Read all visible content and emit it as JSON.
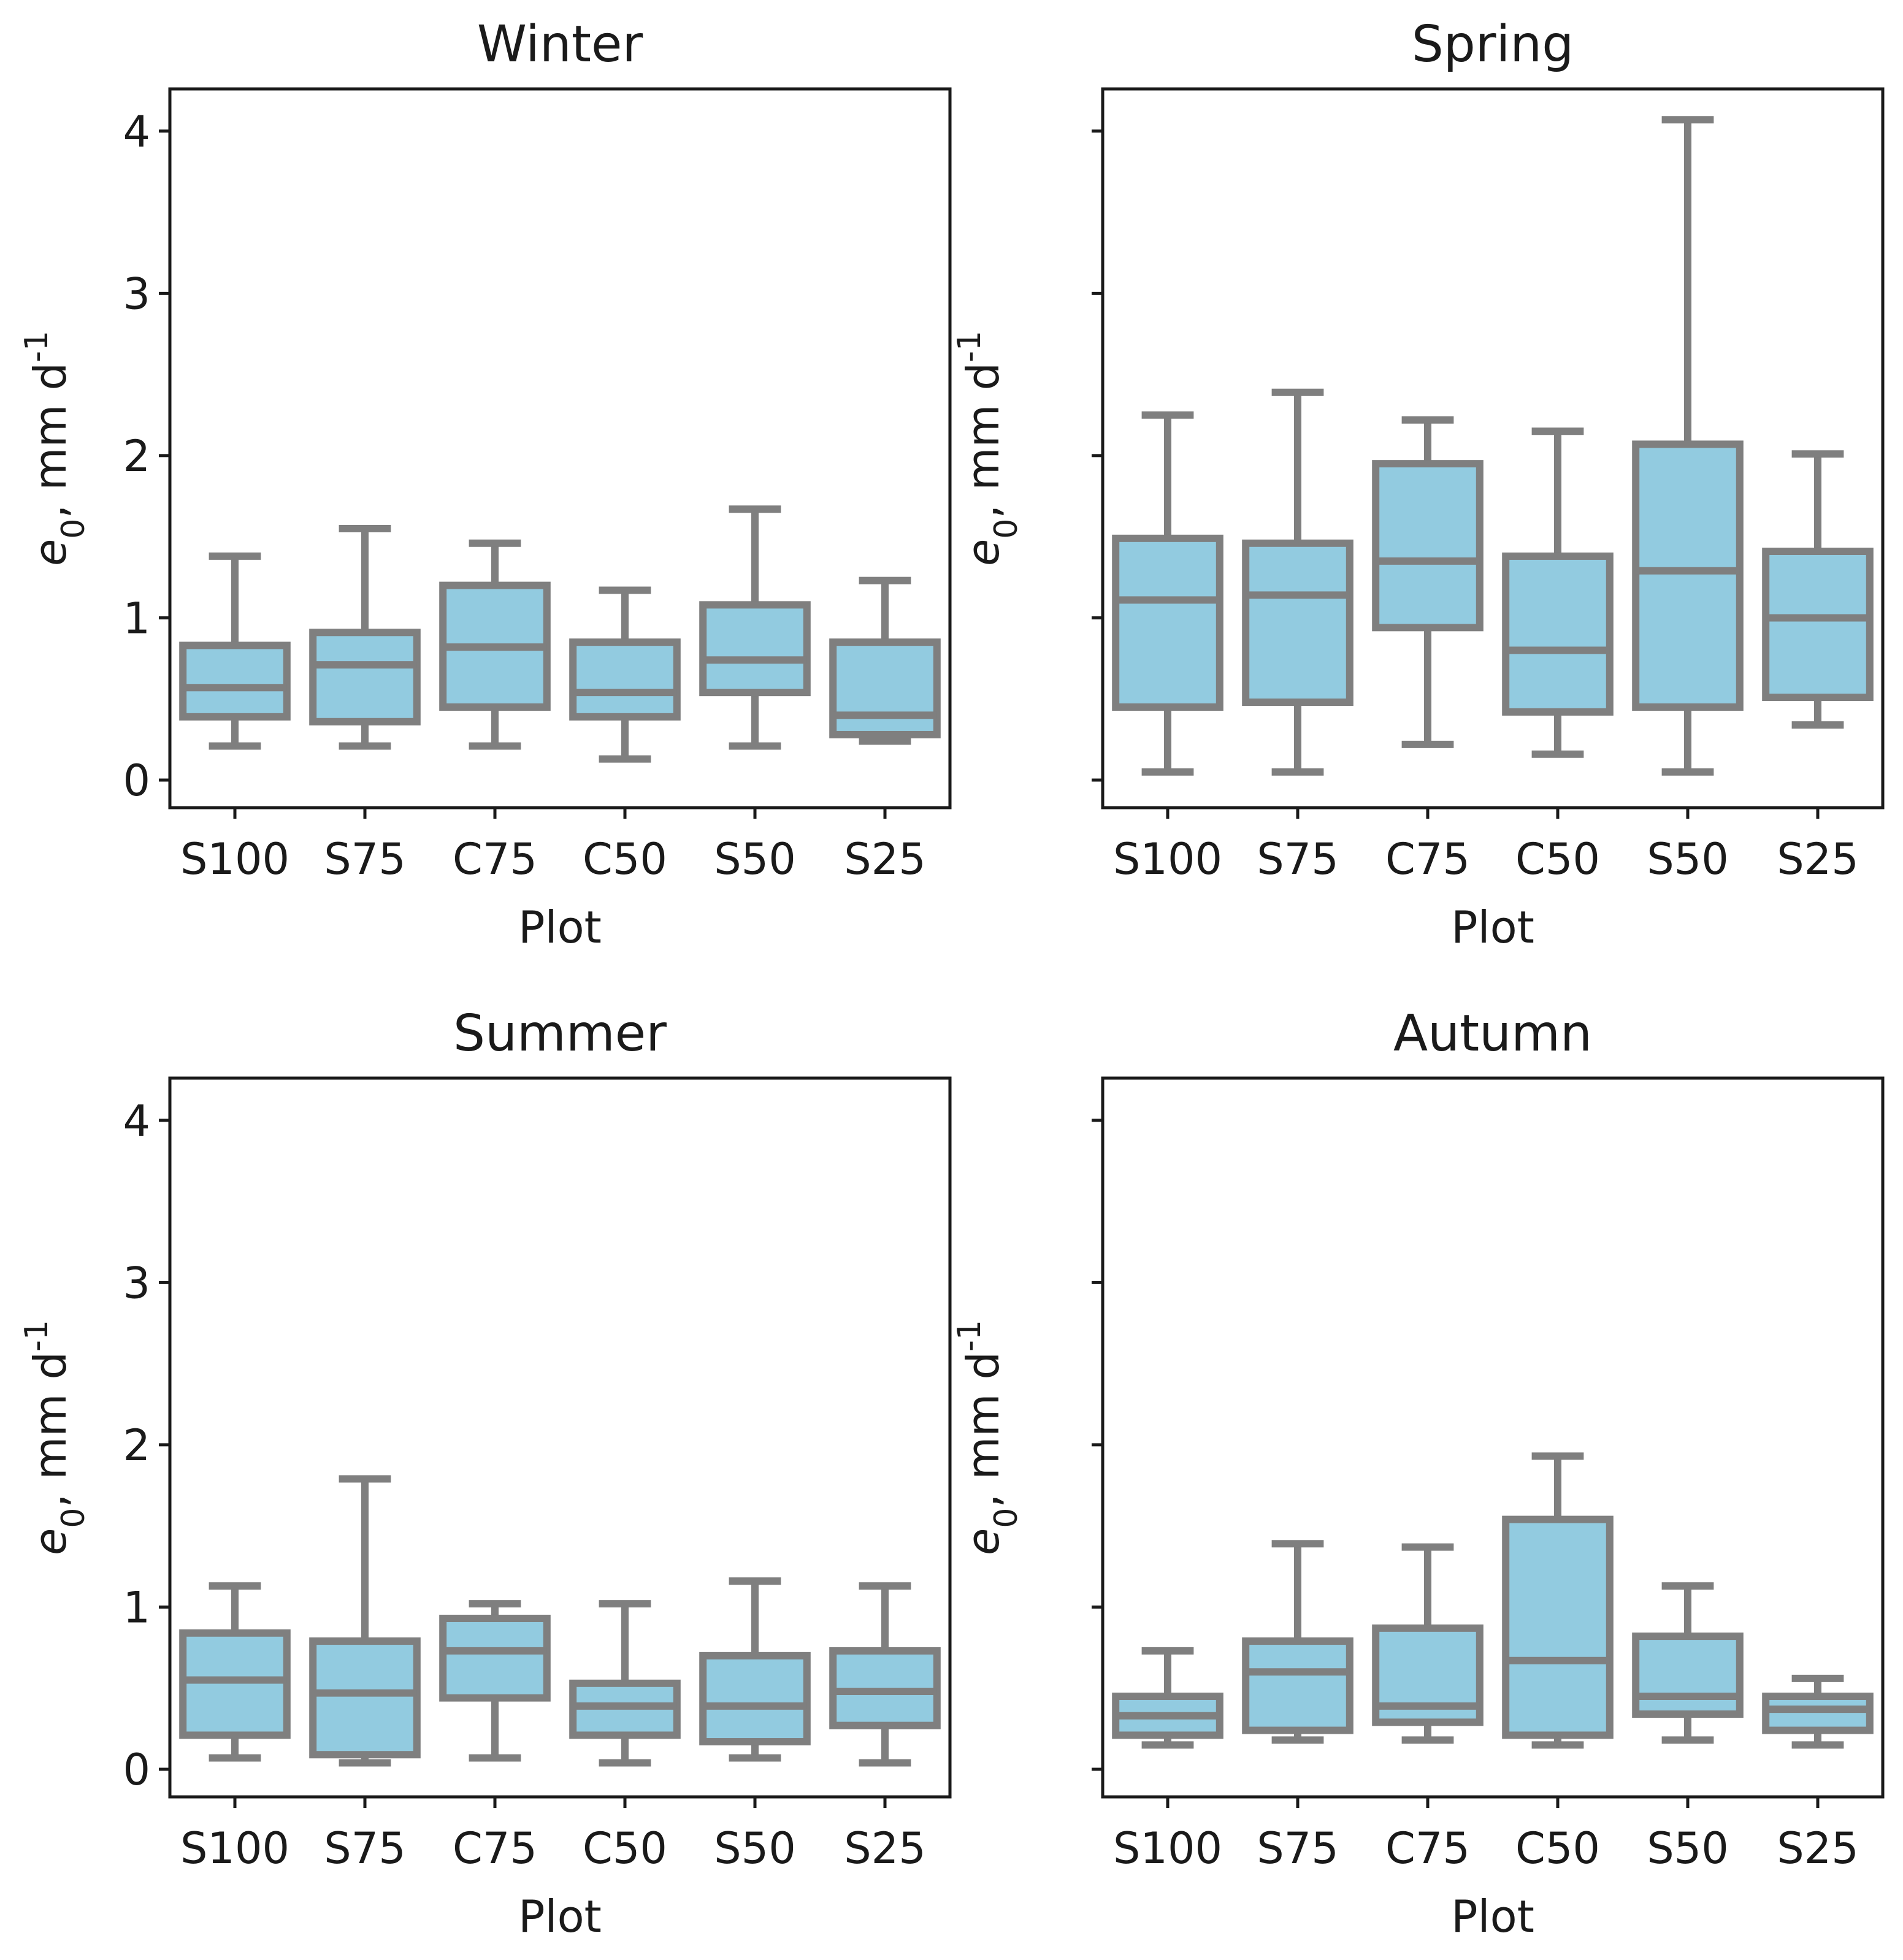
{
  "figure": {
    "background": "#ffffff"
  },
  "style": {
    "box_fill": "#92cbe0",
    "box_stroke": "#7f7f7f",
    "axis_color": "#1a1a1a"
  },
  "chart_data": [
    {
      "type": "box",
      "title": "Winter",
      "xlabel": "Plot",
      "ylabel": "e_0, mm d^-1",
      "ylim": [
        -0.17,
        4.26
      ],
      "yticks": [
        0,
        1,
        2,
        3,
        4
      ],
      "show_ytick_labels": true,
      "categories": [
        "S100",
        "S75",
        "C75",
        "C50",
        "S50",
        "S25"
      ],
      "boxes": [
        {
          "whislo": 0.21,
          "q1": 0.39,
          "med": 0.57,
          "q3": 0.83,
          "whishi": 1.38
        },
        {
          "whislo": 0.21,
          "q1": 0.36,
          "med": 0.71,
          "q3": 0.91,
          "whishi": 1.55
        },
        {
          "whislo": 0.21,
          "q1": 0.45,
          "med": 0.82,
          "q3": 1.2,
          "whishi": 1.46
        },
        {
          "whislo": 0.13,
          "q1": 0.39,
          "med": 0.54,
          "q3": 0.85,
          "whishi": 1.17
        },
        {
          "whislo": 0.21,
          "q1": 0.54,
          "med": 0.74,
          "q3": 1.08,
          "whishi": 1.67
        },
        {
          "whislo": 0.24,
          "q1": 0.28,
          "med": 0.4,
          "q3": 0.85,
          "whishi": 1.23
        }
      ]
    },
    {
      "type": "box",
      "title": "Spring",
      "xlabel": "Plot",
      "ylabel": "e_0, mm d^-1",
      "ylim": [
        -0.17,
        4.26
      ],
      "yticks": [
        0,
        1,
        2,
        3,
        4
      ],
      "show_ytick_labels": false,
      "categories": [
        "S100",
        "S75",
        "C75",
        "C50",
        "S50",
        "S25"
      ],
      "boxes": [
        {
          "whislo": 0.05,
          "q1": 0.45,
          "med": 1.11,
          "q3": 1.49,
          "whishi": 2.25
        },
        {
          "whislo": 0.05,
          "q1": 0.48,
          "med": 1.14,
          "q3": 1.46,
          "whishi": 2.39
        },
        {
          "whislo": 0.22,
          "q1": 0.94,
          "med": 1.35,
          "q3": 1.95,
          "whishi": 2.22
        },
        {
          "whislo": 0.16,
          "q1": 0.42,
          "med": 0.8,
          "q3": 1.38,
          "whishi": 2.15
        },
        {
          "whislo": 0.05,
          "q1": 0.45,
          "med": 1.29,
          "q3": 2.07,
          "whishi": 4.07
        },
        {
          "whislo": 0.34,
          "q1": 0.51,
          "med": 1.0,
          "q3": 1.41,
          "whishi": 2.01
        }
      ]
    },
    {
      "type": "box",
      "title": "Summer",
      "xlabel": "Plot",
      "ylabel": "e_0, mm d^-1",
      "ylim": [
        -0.17,
        4.26
      ],
      "yticks": [
        0,
        1,
        2,
        3,
        4
      ],
      "show_ytick_labels": true,
      "categories": [
        "S100",
        "S75",
        "C75",
        "C50",
        "S50",
        "S25"
      ],
      "boxes": [
        {
          "whislo": 0.07,
          "q1": 0.21,
          "med": 0.55,
          "q3": 0.84,
          "whishi": 1.13
        },
        {
          "whislo": 0.04,
          "q1": 0.09,
          "med": 0.47,
          "q3": 0.79,
          "whishi": 1.79
        },
        {
          "whislo": 0.07,
          "q1": 0.44,
          "med": 0.73,
          "q3": 0.93,
          "whishi": 1.02
        },
        {
          "whislo": 0.04,
          "q1": 0.21,
          "med": 0.39,
          "q3": 0.53,
          "whishi": 1.02
        },
        {
          "whislo": 0.07,
          "q1": 0.17,
          "med": 0.39,
          "q3": 0.7,
          "whishi": 1.16
        },
        {
          "whislo": 0.04,
          "q1": 0.27,
          "med": 0.48,
          "q3": 0.73,
          "whishi": 1.13
        }
      ]
    },
    {
      "type": "box",
      "title": "Autumn",
      "xlabel": "Plot",
      "ylabel": "e_0, mm d^-1",
      "ylim": [
        -0.17,
        4.26
      ],
      "yticks": [
        0,
        1,
        2,
        3,
        4
      ],
      "show_ytick_labels": false,
      "categories": [
        "S100",
        "S75",
        "C75",
        "C50",
        "S50",
        "S25"
      ],
      "boxes": [
        {
          "whislo": 0.15,
          "q1": 0.21,
          "med": 0.33,
          "q3": 0.45,
          "whishi": 0.73
        },
        {
          "whislo": 0.18,
          "q1": 0.24,
          "med": 0.6,
          "q3": 0.79,
          "whishi": 1.39
        },
        {
          "whislo": 0.18,
          "q1": 0.29,
          "med": 0.39,
          "q3": 0.87,
          "whishi": 1.37
        },
        {
          "whislo": 0.15,
          "q1": 0.21,
          "med": 0.67,
          "q3": 1.54,
          "whishi": 1.93
        },
        {
          "whislo": 0.18,
          "q1": 0.34,
          "med": 0.45,
          "q3": 0.82,
          "whishi": 1.13
        },
        {
          "whislo": 0.15,
          "q1": 0.24,
          "med": 0.37,
          "q3": 0.45,
          "whishi": 0.56
        }
      ]
    }
  ]
}
